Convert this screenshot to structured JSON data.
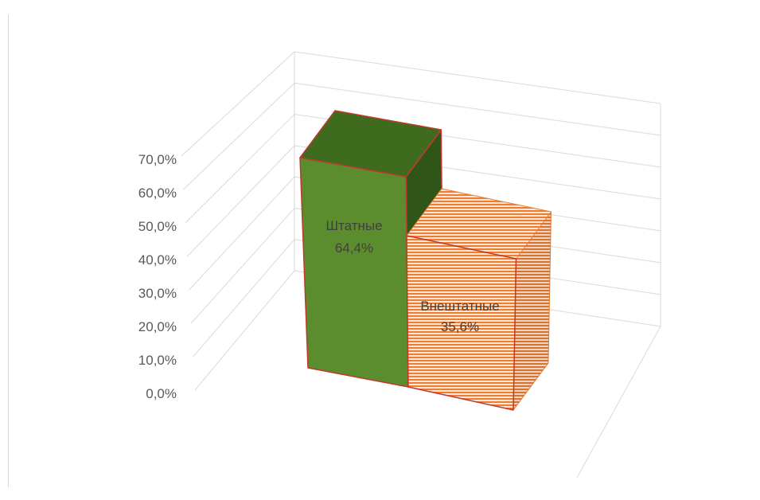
{
  "chart_data": {
    "type": "bar",
    "three_d": true,
    "categories": [
      "Штатные",
      "Внештатные"
    ],
    "values": [
      64.4,
      35.6
    ],
    "data_labels": [
      "64,4%",
      "35,6%"
    ],
    "yticks": [
      "0,0%",
      "10,0%",
      "20,0%",
      "30,0%",
      "40,0%",
      "50,0%",
      "60,0%",
      "70,0%"
    ],
    "ylim": [
      0,
      70
    ],
    "grid": true,
    "legend": false,
    "colors": {
      "bar_0": "#5b8c2d",
      "bar_0_top": "#3f6b1f",
      "bar_0_side": "#2f5519",
      "bar_1": "#ed7d31",
      "bar_1_light": "#fde6d4",
      "border": "#c0392b",
      "gridline": "#d9d9d9",
      "tick_text": "#595959",
      "label_text": "#404040"
    }
  }
}
